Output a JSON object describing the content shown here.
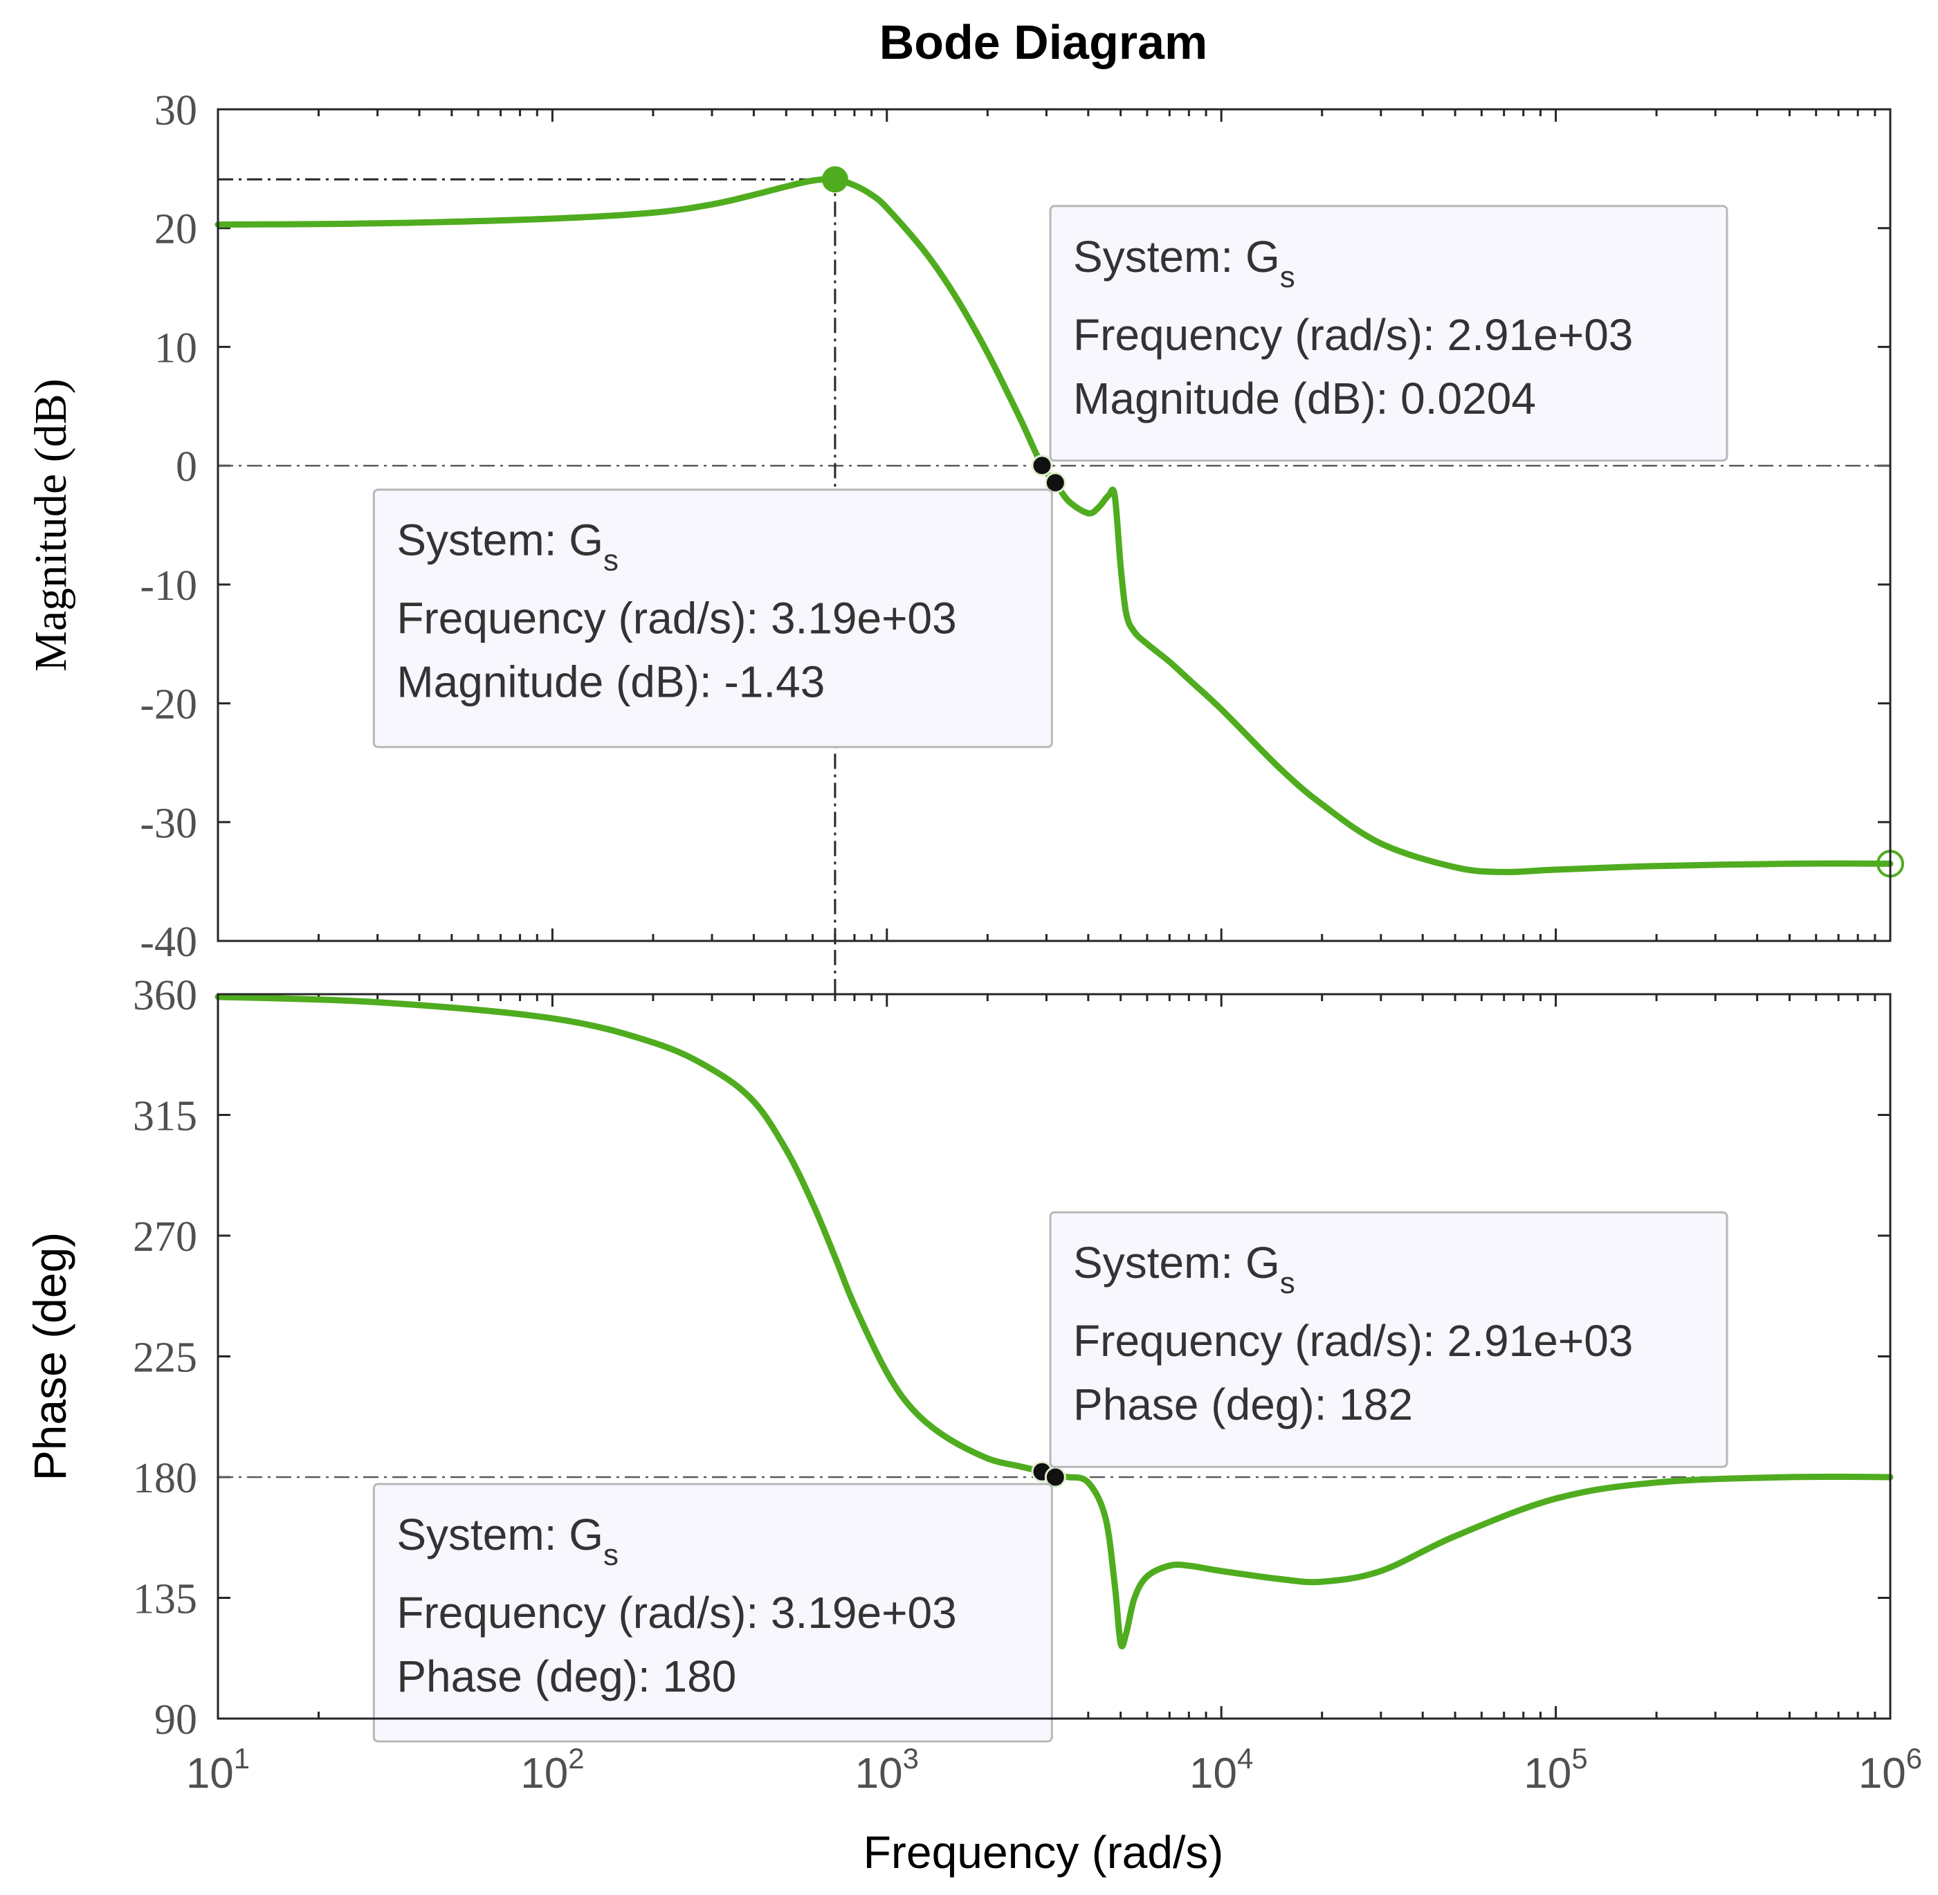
{
  "chart_data": {
    "type": "line",
    "title": "Bode Diagram",
    "xlabel": "Frequency  (rad/s)",
    "xscale": "log",
    "xlim": [
      10,
      1000000
    ],
    "xticks": [
      {
        "base": "10",
        "exp": "1"
      },
      {
        "base": "10",
        "exp": "2"
      },
      {
        "base": "10",
        "exp": "3"
      },
      {
        "base": "10",
        "exp": "4"
      },
      {
        "base": "10",
        "exp": "5"
      },
      {
        "base": "10",
        "exp": "6"
      }
    ],
    "series_color": "#4fac1f",
    "subplots": [
      {
        "name": "magnitude",
        "ylabel": "Magnitude (dB)",
        "ylim": [
          -40,
          30
        ],
        "yticks": [
          "30",
          "20",
          "10",
          "0",
          "-10",
          "-20",
          "-30",
          "-40"
        ],
        "series": {
          "name": "Gs",
          "x": [
            10,
            30,
            100,
            200,
            300,
            400,
            500,
            600,
            700,
            800,
            900,
            1000,
            1300,
            1600,
            2000,
            2500,
            2910,
            3190,
            3500,
            4000,
            4300,
            4600,
            4800,
            5000,
            5200,
            5500,
            6000,
            7000,
            8000,
            10000,
            15000,
            20000,
            30000,
            50000,
            70000,
            100000,
            200000,
            500000,
            1000000
          ],
          "y": [
            20.3,
            20.4,
            20.8,
            21.3,
            22.0,
            22.8,
            23.5,
            24.0,
            24.1,
            23.6,
            22.8,
            21.7,
            18.0,
            14.3,
            9.5,
            4.0,
            0.0204,
            -1.43,
            -3.0,
            -4.0,
            -3.5,
            -2.5,
            -2.5,
            -8.5,
            -12.5,
            -14.0,
            -15.0,
            -16.5,
            -18.0,
            -20.5,
            -25.5,
            -28.5,
            -31.8,
            -33.8,
            -34.2,
            -34.0,
            -33.7,
            -33.5,
            -33.5
          ]
        },
        "peak": {
          "x": 700,
          "y": 24.1
        },
        "reference_line_y": 0
      },
      {
        "name": "phase",
        "ylabel": "Phase (deg)",
        "ylim": [
          90,
          360
        ],
        "yticks": [
          "360",
          "315",
          "270",
          "225",
          "180",
          "135",
          "90"
        ],
        "series": {
          "name": "Gs",
          "x": [
            10,
            30,
            100,
            200,
            300,
            400,
            500,
            600,
            700,
            800,
            1000,
            1200,
            1500,
            2000,
            2500,
            2910,
            3190,
            3500,
            4000,
            4500,
            4800,
            5000,
            5200,
            5500,
            6000,
            7000,
            8000,
            10000,
            15000,
            20000,
            30000,
            50000,
            100000,
            200000,
            500000,
            1000000
          ],
          "y": [
            359,
            357,
            351,
            342,
            332,
            320,
            302,
            282,
            262,
            244,
            219,
            205,
            195,
            187,
            184,
            182,
            180,
            180,
            178,
            165,
            140,
            118,
            122,
            135,
            143,
            147,
            147,
            145,
            142,
            141,
            145,
            158,
            172,
            178,
            180,
            180
          ]
        },
        "reference_line_y": 180
      }
    ],
    "datatips": [
      {
        "panel": "magnitude",
        "x": 2910,
        "y": 0.0204,
        "system_label": "System: G",
        "system_sub": "s",
        "freq_label": "Frequency (rad/s): 2.91e+03",
        "value_label": "Magnitude (dB): 0.0204"
      },
      {
        "panel": "magnitude",
        "x": 3190,
        "y": -1.43,
        "system_label": "System: G",
        "system_sub": "s",
        "freq_label": "Frequency (rad/s): 3.19e+03",
        "value_label": "Magnitude (dB): -1.43"
      },
      {
        "panel": "phase",
        "x": 2910,
        "y": 182,
        "system_label": "System: G",
        "system_sub": "s",
        "freq_label": "Frequency (rad/s): 2.91e+03",
        "value_label": "Phase (deg): 182"
      },
      {
        "panel": "phase",
        "x": 3190,
        "y": 180,
        "system_label": "System: G",
        "system_sub": "s",
        "freq_label": "Frequency (rad/s): 3.19e+03",
        "value_label": "Phase (deg): 180"
      }
    ]
  }
}
